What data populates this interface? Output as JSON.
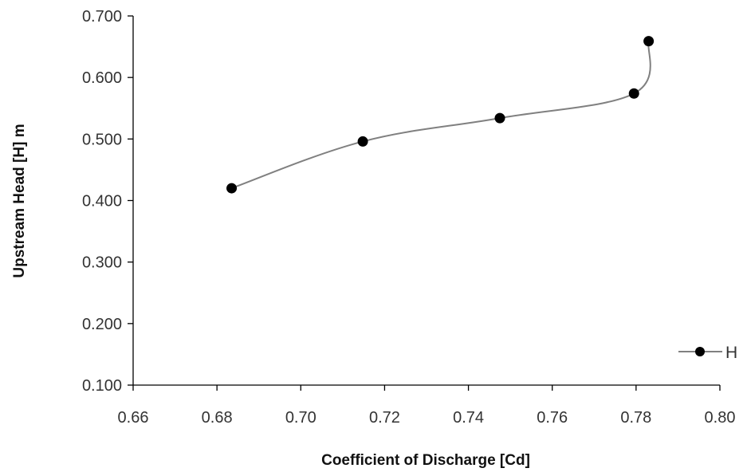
{
  "chart_data": {
    "type": "line",
    "xlabel": "Coefficient of Discharge [Cd]",
    "ylabel": "Upstream Head [H] m",
    "xlim": [
      0.66,
      0.8
    ],
    "ylim": [
      0.1,
      0.7
    ],
    "x_ticks": [
      "0.66",
      "0.68",
      "0.70",
      "0.72",
      "0.74",
      "0.76",
      "0.78",
      "0.80"
    ],
    "y_ticks": [
      "0.100",
      "0.200",
      "0.300",
      "0.400",
      "0.500",
      "0.600",
      "0.700"
    ],
    "grid": false,
    "smooth": true,
    "legend_position": "right",
    "series": [
      {
        "name": "H",
        "color": "#808080",
        "marker_color": "#000000",
        "points": [
          {
            "x": 0.6835,
            "y": 0.42
          },
          {
            "x": 0.7148,
            "y": 0.496
          },
          {
            "x": 0.7475,
            "y": 0.534
          },
          {
            "x": 0.7795,
            "y": 0.574
          },
          {
            "x": 0.783,
            "y": 0.659
          }
        ]
      }
    ]
  }
}
